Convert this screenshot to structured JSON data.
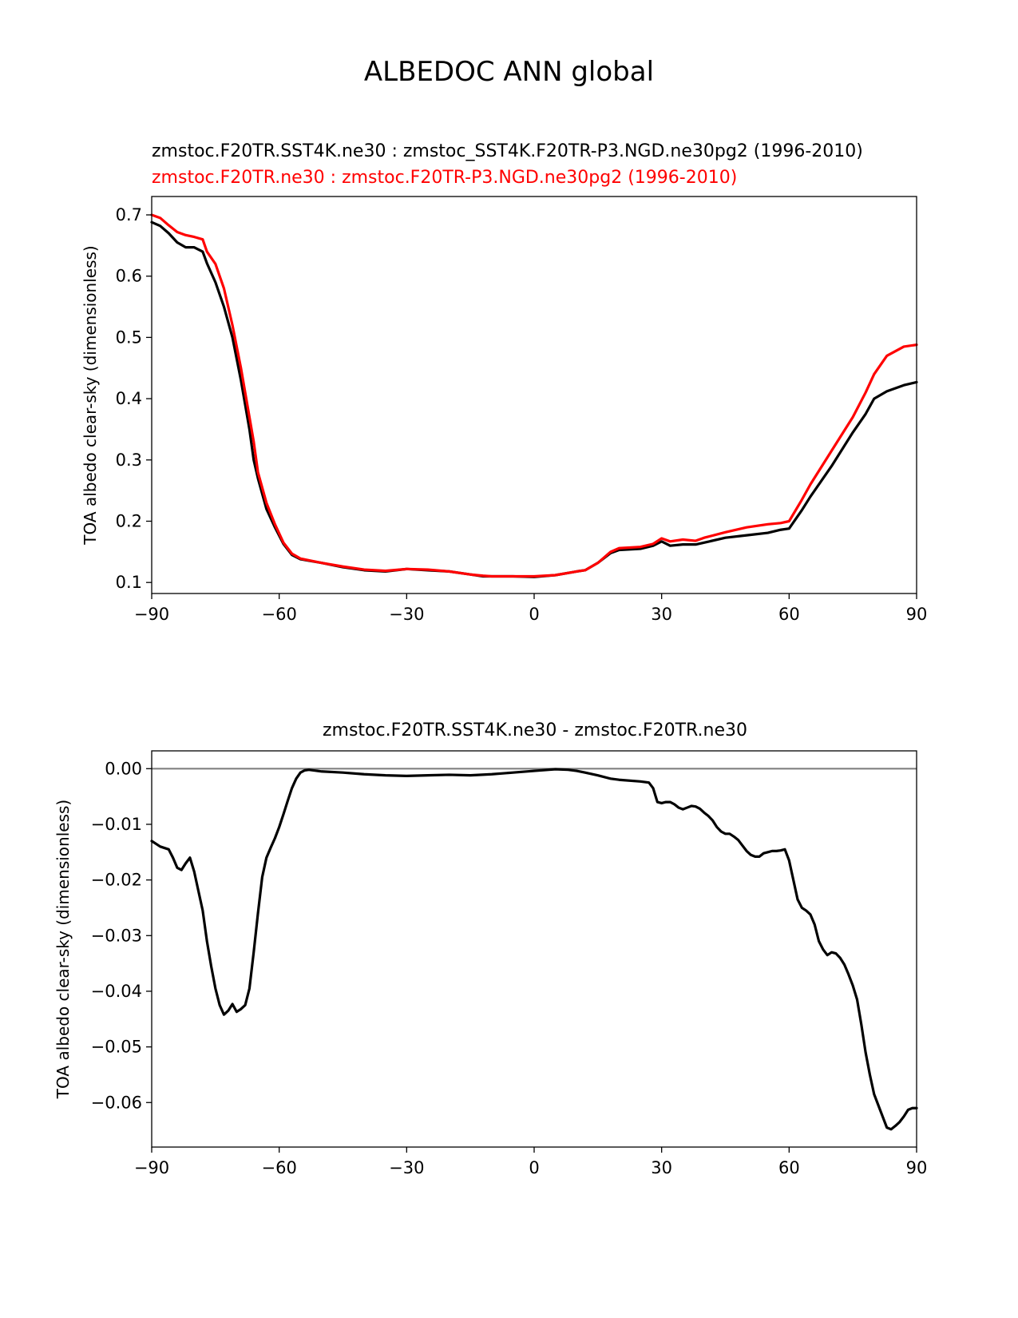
{
  "title": "ALBEDOC ANN global",
  "colors": {
    "test": "#000000",
    "reference": "#ff0000",
    "zero_line": "#808080"
  },
  "chart_data": [
    {
      "type": "line",
      "subtitle_1": "zmstoc.F20TR.SST4K.ne30 : zmstoc_SST4K.F20TR-P3.NGD.ne30pg2 (1996-2010)",
      "subtitle_2": "zmstoc.F20TR.ne30 : zmstoc.F20TR-P3.NGD.ne30pg2 (1996-2010)",
      "xlabel": "",
      "ylabel": "TOA albedo clear-sky (dimensionless)",
      "xlim": [
        -90,
        90
      ],
      "ylim": [
        0.082,
        0.73
      ],
      "xticks": [
        -90,
        -60,
        -30,
        0,
        30,
        60,
        90
      ],
      "xtick_labels": [
        "−90",
        "−60",
        "−30",
        "0",
        "30",
        "60",
        "90"
      ],
      "yticks": [
        0.1,
        0.2,
        0.3,
        0.4,
        0.5,
        0.6,
        0.7
      ],
      "ytick_labels": [
        "0.1",
        "0.2",
        "0.3",
        "0.4",
        "0.5",
        "0.6",
        "0.7"
      ],
      "grid": false,
      "series": [
        {
          "color": "#000000",
          "x": [
            -90,
            -88,
            -86,
            -84,
            -82,
            -80,
            -78,
            -77,
            -75,
            -73,
            -71,
            -69,
            -67,
            -66,
            -65,
            -63,
            -61,
            -59,
            -57,
            -55,
            -50,
            -45,
            -40,
            -35,
            -30,
            -25,
            -20,
            -15,
            -12,
            -10,
            -5,
            0,
            5,
            10,
            12,
            15,
            18,
            20,
            25,
            28,
            30,
            32,
            35,
            38,
            40,
            45,
            50,
            55,
            58,
            60,
            63,
            65,
            70,
            75,
            78,
            80,
            83,
            87,
            90
          ],
          "y": [
            0.688,
            0.682,
            0.67,
            0.655,
            0.647,
            0.647,
            0.64,
            0.621,
            0.59,
            0.55,
            0.5,
            0.43,
            0.35,
            0.3,
            0.27,
            0.22,
            0.19,
            0.163,
            0.145,
            0.138,
            0.132,
            0.125,
            0.12,
            0.118,
            0.122,
            0.12,
            0.118,
            0.113,
            0.11,
            0.11,
            0.11,
            0.109,
            0.112,
            0.118,
            0.12,
            0.132,
            0.148,
            0.153,
            0.155,
            0.16,
            0.167,
            0.16,
            0.162,
            0.162,
            0.165,
            0.173,
            0.177,
            0.181,
            0.186,
            0.188,
            0.218,
            0.24,
            0.29,
            0.345,
            0.375,
            0.4,
            0.412,
            0.422,
            0.427
          ]
        },
        {
          "color": "#ff0000",
          "x": [
            -90,
            -88,
            -86,
            -84,
            -82,
            -80,
            -78,
            -77,
            -75,
            -73,
            -71,
            -69,
            -67,
            -66,
            -65,
            -63,
            -61,
            -59,
            -57,
            -55,
            -50,
            -45,
            -40,
            -35,
            -30,
            -25,
            -20,
            -15,
            -12,
            -10,
            -5,
            0,
            5,
            10,
            12,
            15,
            18,
            20,
            25,
            28,
            30,
            32,
            35,
            38,
            40,
            45,
            50,
            55,
            58,
            60,
            63,
            65,
            70,
            75,
            78,
            80,
            83,
            87,
            90
          ],
          "y": [
            0.7,
            0.695,
            0.683,
            0.672,
            0.667,
            0.664,
            0.66,
            0.64,
            0.62,
            0.58,
            0.52,
            0.45,
            0.37,
            0.33,
            0.28,
            0.23,
            0.195,
            0.165,
            0.147,
            0.139,
            0.132,
            0.126,
            0.121,
            0.119,
            0.122,
            0.121,
            0.118,
            0.113,
            0.111,
            0.11,
            0.11,
            0.11,
            0.112,
            0.118,
            0.12,
            0.132,
            0.15,
            0.156,
            0.158,
            0.163,
            0.172,
            0.167,
            0.17,
            0.168,
            0.173,
            0.182,
            0.19,
            0.195,
            0.197,
            0.2,
            0.235,
            0.26,
            0.315,
            0.37,
            0.41,
            0.44,
            0.47,
            0.485,
            0.488
          ]
        }
      ]
    },
    {
      "type": "line",
      "title": "zmstoc.F20TR.SST4K.ne30 - zmstoc.F20TR.ne30",
      "xlabel": "",
      "ylabel": "TOA albedo clear-sky (dimensionless)",
      "xlim": [
        -90,
        90
      ],
      "ylim": [
        -0.068,
        0.0032
      ],
      "xticks": [
        -90,
        -60,
        -30,
        0,
        30,
        60,
        90
      ],
      "xtick_labels": [
        "−90",
        "−60",
        "−30",
        "0",
        "30",
        "60",
        "90"
      ],
      "yticks": [
        0.0,
        -0.01,
        -0.02,
        -0.03,
        -0.04,
        -0.05,
        -0.06
      ],
      "ytick_labels": [
        "0.00",
        "−0.01",
        "−0.02",
        "−0.03",
        "−0.04",
        "−0.05",
        "−0.06"
      ],
      "grid": false,
      "zero_line": 0,
      "series": [
        {
          "color": "#000000",
          "x": [
            -90,
            -89,
            -88,
            -86,
            -85,
            -84,
            -83,
            -82,
            -81,
            -80,
            -79,
            -78,
            -77,
            -76,
            -75,
            -74,
            -73,
            -72,
            -71,
            -70,
            -69,
            -68,
            -67,
            -66,
            -65,
            -64,
            -63,
            -62,
            -61,
            -60,
            -59,
            -58,
            -57,
            -56,
            -55,
            -54,
            -53,
            -50,
            -45,
            -40,
            -35,
            -30,
            -25,
            -20,
            -15,
            -10,
            -5,
            0,
            5,
            8,
            10,
            12,
            15,
            18,
            20,
            25,
            27,
            28,
            29,
            30,
            31,
            32,
            33,
            34,
            35,
            36,
            37,
            38,
            39,
            40,
            41,
            42,
            43,
            44,
            45,
            46,
            47,
            48,
            49,
            50,
            51,
            52,
            53,
            54,
            55,
            56,
            57,
            58,
            59,
            60,
            61,
            62,
            63,
            64,
            65,
            66,
            67,
            68,
            69,
            70,
            71,
            72,
            73,
            74,
            75,
            76,
            77,
            78,
            79,
            80,
            81,
            82,
            83,
            84,
            85,
            86,
            87,
            88,
            89,
            90
          ],
          "y": [
            -0.013,
            -0.0135,
            -0.014,
            -0.0145,
            -0.016,
            -0.0178,
            -0.0182,
            -0.017,
            -0.016,
            -0.0185,
            -0.022,
            -0.0255,
            -0.031,
            -0.0355,
            -0.0395,
            -0.0425,
            -0.0442,
            -0.0435,
            -0.0423,
            -0.0437,
            -0.0432,
            -0.0425,
            -0.0395,
            -0.033,
            -0.026,
            -0.0195,
            -0.016,
            -0.0142,
            -0.0125,
            -0.0105,
            -0.0082,
            -0.0058,
            -0.0035,
            -0.0018,
            -0.0007,
            -0.0003,
            -0.0002,
            -0.0005,
            -0.0007,
            -0.001,
            -0.0012,
            -0.0013,
            -0.0012,
            -0.0011,
            -0.0012,
            -0.001,
            -0.0007,
            -0.0004,
            -0.0001,
            -0.0002,
            -0.0004,
            -0.0007,
            -0.0012,
            -0.0018,
            -0.002,
            -0.0023,
            -0.0025,
            -0.0035,
            -0.006,
            -0.0062,
            -0.006,
            -0.006,
            -0.0064,
            -0.007,
            -0.0073,
            -0.007,
            -0.0067,
            -0.0068,
            -0.0072,
            -0.0079,
            -0.0085,
            -0.0093,
            -0.0105,
            -0.0113,
            -0.0117,
            -0.0117,
            -0.0122,
            -0.0128,
            -0.0138,
            -0.0148,
            -0.0155,
            -0.0158,
            -0.0158,
            -0.0152,
            -0.015,
            -0.0148,
            -0.0148,
            -0.0147,
            -0.0145,
            -0.0165,
            -0.02,
            -0.0235,
            -0.025,
            -0.0255,
            -0.0262,
            -0.028,
            -0.031,
            -0.0325,
            -0.0335,
            -0.033,
            -0.0332,
            -0.034,
            -0.0352,
            -0.037,
            -0.039,
            -0.0415,
            -0.046,
            -0.051,
            -0.055,
            -0.0585,
            -0.0605,
            -0.0625,
            -0.0645,
            -0.0648,
            -0.0642,
            -0.0635,
            -0.0625,
            -0.0613,
            -0.061,
            -0.061
          ]
        }
      ]
    }
  ]
}
